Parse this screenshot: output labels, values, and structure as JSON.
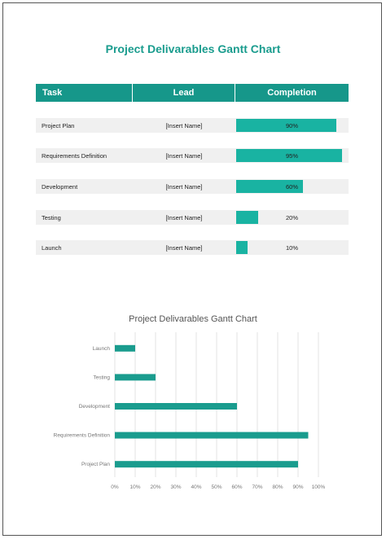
{
  "document": {
    "title": "Project Delivarables Gantt Chart"
  },
  "table": {
    "headers": [
      "Task",
      "Lead",
      "Completion"
    ],
    "rows": [
      {
        "task": "Project Plan",
        "lead": "[Insert Name]",
        "completion": 0.9,
        "completion_label": "90%"
      },
      {
        "task": "Requirements Definition",
        "lead": "[Insert Name]",
        "completion": 0.95,
        "completion_label": "95%"
      },
      {
        "task": "Development",
        "lead": "[Insert Name]",
        "completion": 0.6,
        "completion_label": "60%"
      },
      {
        "task": "Testing",
        "lead": "[Insert Name]",
        "completion": 0.2,
        "completion_label": "20%"
      },
      {
        "task": "Launch",
        "lead": "[Insert Name]",
        "completion": 0.1,
        "completion_label": "10%"
      }
    ]
  },
  "colors": {
    "accent": "#16978a",
    "bar": "#19b3a2",
    "chart_bar": "#1a9c8e"
  },
  "chart_data": {
    "type": "bar",
    "orientation": "horizontal",
    "title": "Project Delivarables Gantt Chart",
    "categories": [
      "Launch",
      "Testing",
      "Development",
      "Requirements Definition",
      "Project Plan"
    ],
    "values": [
      10,
      20,
      60,
      95,
      90
    ],
    "xlim": [
      0,
      100
    ],
    "ticks": [
      "0%",
      "10%",
      "20%",
      "30%",
      "40%",
      "50%",
      "60%",
      "70%",
      "80%",
      "90%",
      "100%"
    ],
    "grid": true,
    "legend": "none"
  }
}
